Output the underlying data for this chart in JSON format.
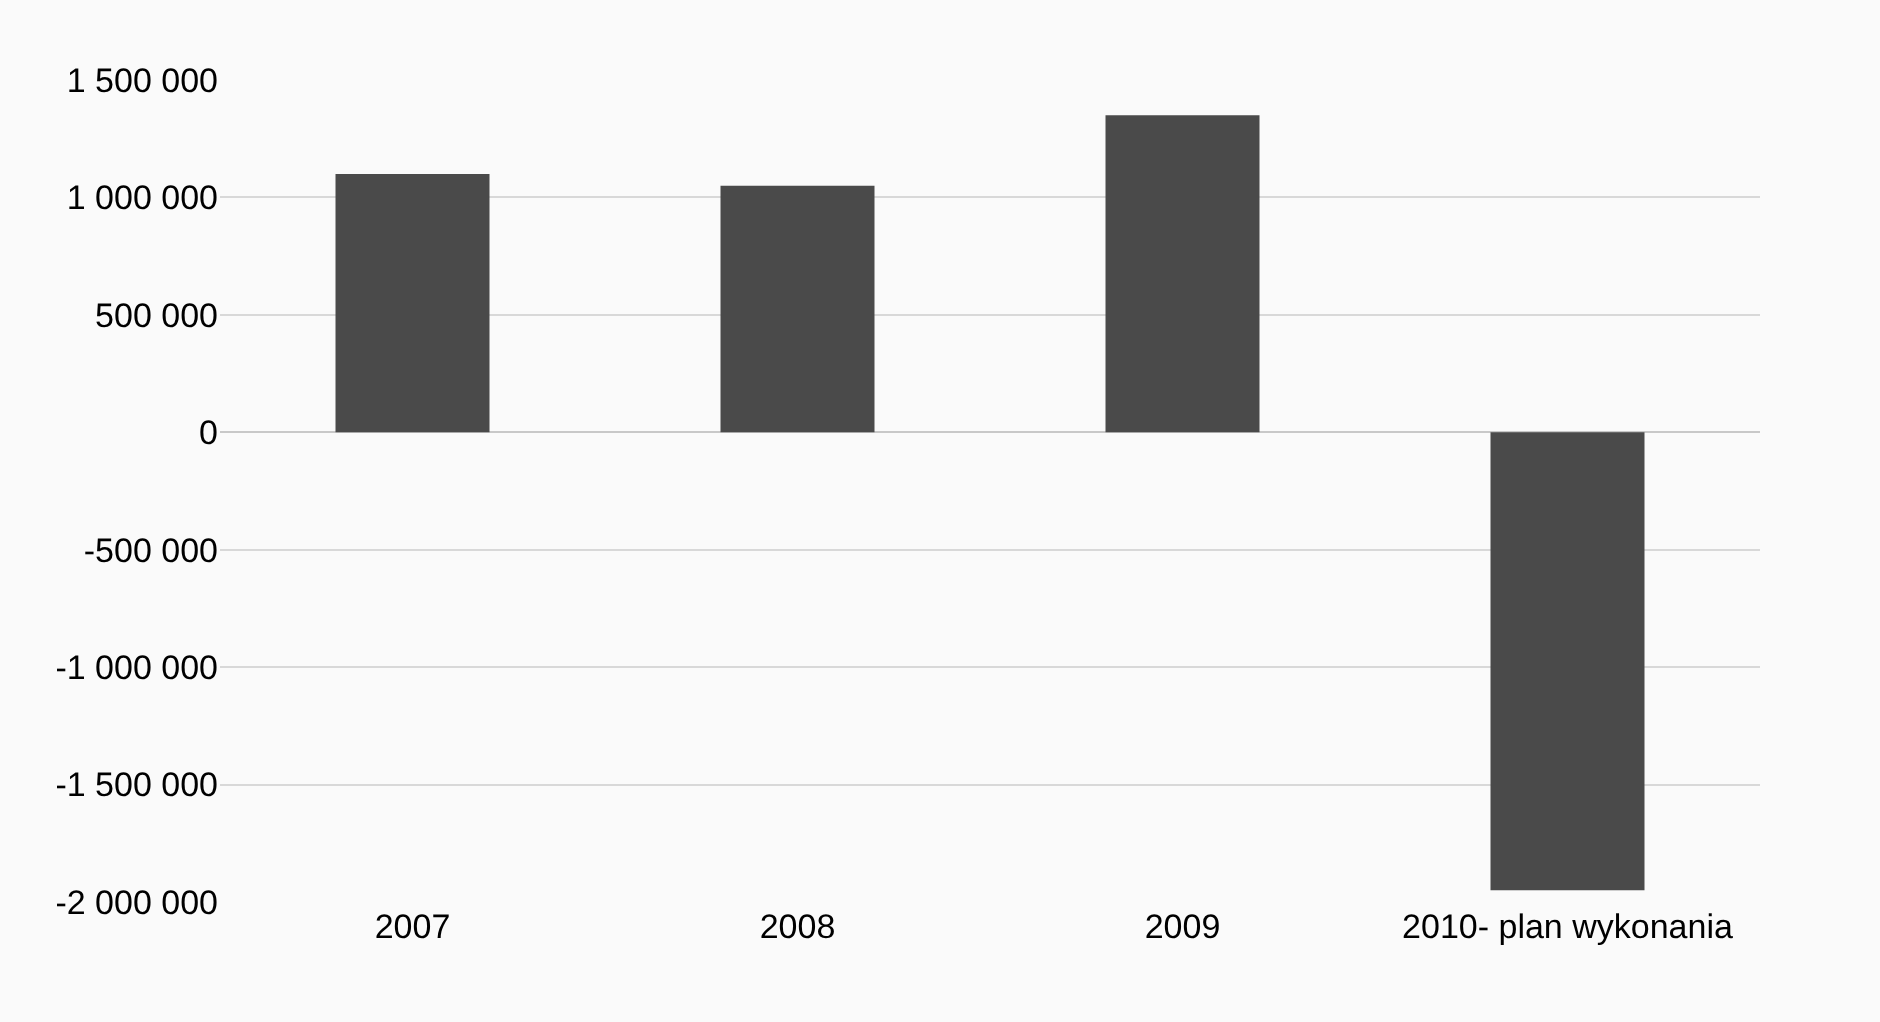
{
  "chart_data": {
    "type": "bar",
    "categories": [
      "2007",
      "2008",
      "2009",
      "2010- plan wykonania"
    ],
    "values": [
      1100000,
      1050000,
      1350000,
      -1950000
    ],
    "color": "#4a4a4a",
    "ylim": [
      -2000000,
      1500000
    ],
    "yticks": [
      {
        "value": -2000000,
        "label": "-2 000 000"
      },
      {
        "value": -1500000,
        "label": "-1 500 000"
      },
      {
        "value": -1000000,
        "label": "-1 000 000"
      },
      {
        "value": -500000,
        "label": "-500 000"
      },
      0,
      {
        "value": 500000,
        "label": "500 000"
      },
      {
        "value": 1000000,
        "label": "1 000 000"
      },
      {
        "value": 1500000,
        "label": "1 500 000"
      }
    ],
    "grid": "y"
  }
}
